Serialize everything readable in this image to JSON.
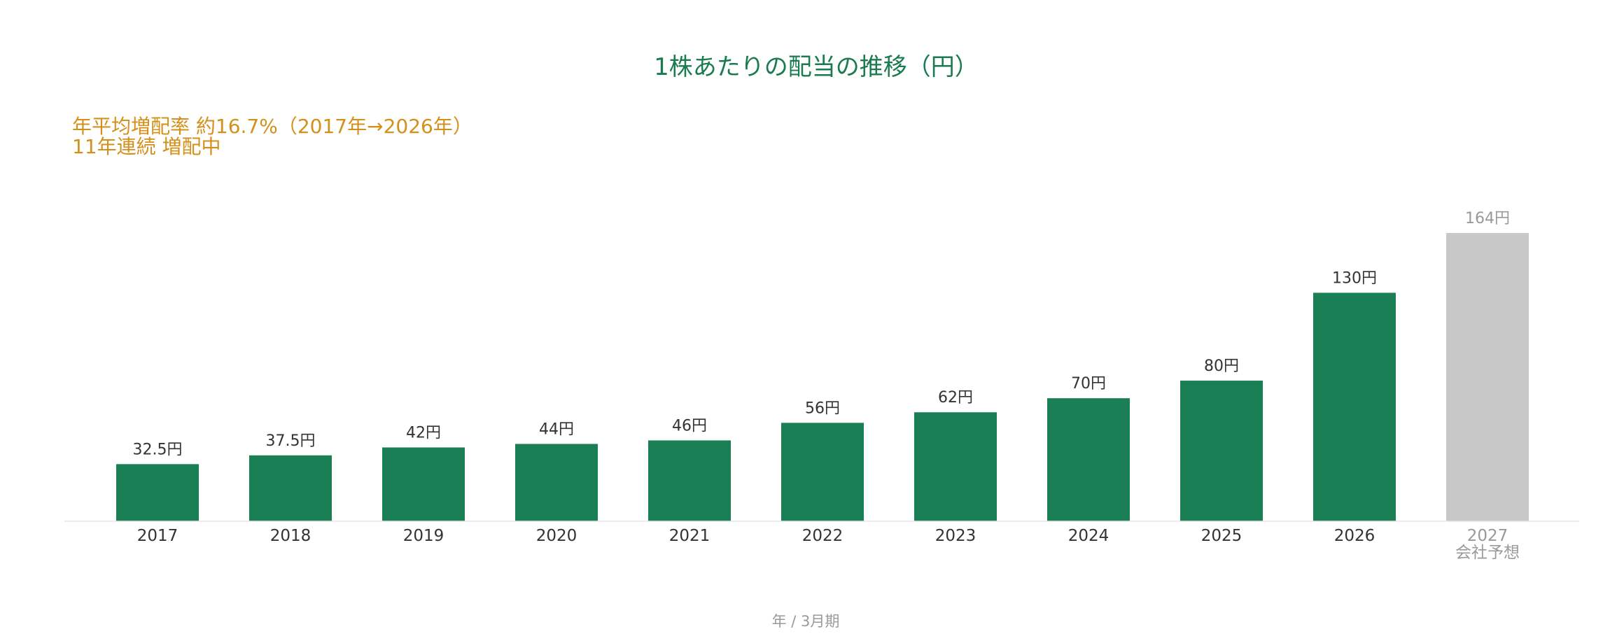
{
  "chart_data": {
    "type": "bar",
    "title": "1株あたりの配当の推移（円）",
    "annotations": [
      "年平均増配率 約16.7%（2017年→2026年）",
      "11年連続 増配中"
    ],
    "categories": [
      "2017",
      "2018",
      "2019",
      "2020",
      "2021",
      "2022",
      "2023",
      "2024",
      "2025",
      "2026",
      "2027"
    ],
    "category_notes": [
      "",
      "",
      "",
      "",
      "",
      "",
      "",
      "",
      "",
      "",
      "会社予想"
    ],
    "values": [
      32.5,
      37.5,
      42,
      44,
      46,
      56,
      62,
      70,
      80,
      130,
      164
    ],
    "value_labels": [
      "32.5円",
      "37.5円",
      "42円",
      "44円",
      "46円",
      "56円",
      "62円",
      "70円",
      "80円",
      "130円",
      "164円"
    ],
    "forecast": [
      false,
      false,
      false,
      false,
      false,
      false,
      false,
      false,
      false,
      false,
      true
    ],
    "xlabel": "年 / 3月期",
    "ylabel": "",
    "ylim": [
      0,
      164
    ],
    "grid": false,
    "legend": "none"
  },
  "colors": {
    "title": "#1a7a50",
    "bar": "#1b7f55",
    "forecast_bar": "#c8c8c8",
    "annotation": "#d4901a",
    "value_label": "#333333",
    "tick_label": "#333333",
    "forecast_text": "#999999",
    "xlabel": "#999999",
    "axis": "#e6e6e6"
  }
}
